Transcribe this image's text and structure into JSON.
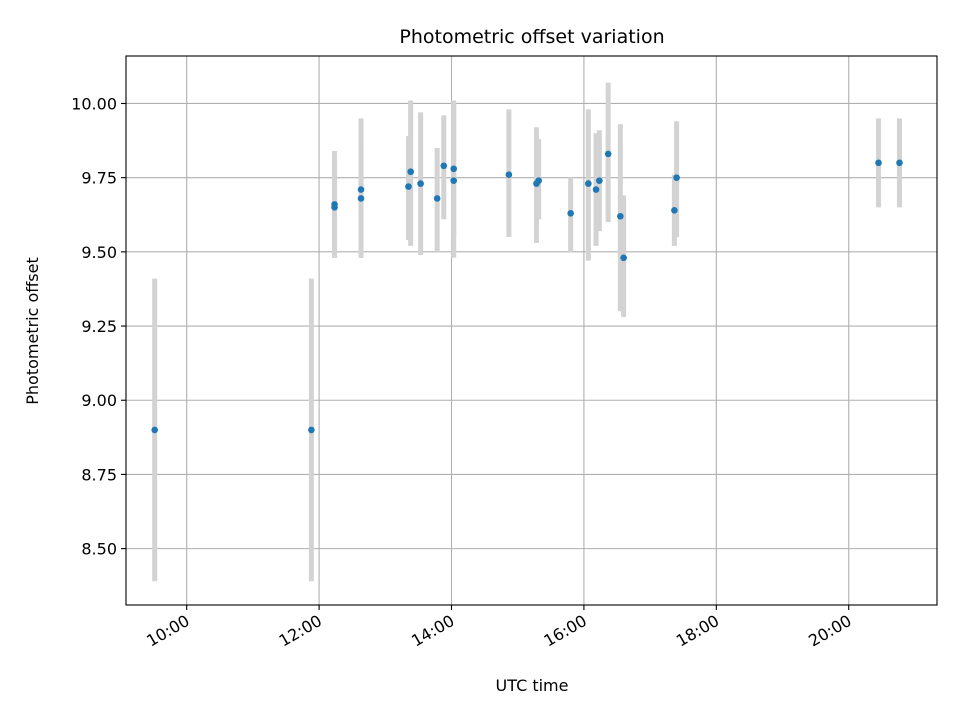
{
  "chart_data": {
    "type": "scatter",
    "title": "Photometric offset variation",
    "xlabel": "UTC time",
    "ylabel": "Photometric offset",
    "x_format": "HH:MM",
    "xlim": [
      "09:05",
      "21:20"
    ],
    "ylim": [
      8.31,
      10.16
    ],
    "x_ticks": [
      "10:00",
      "12:00",
      "14:00",
      "16:00",
      "18:00",
      "20:00"
    ],
    "y_ticks": [
      8.5,
      8.75,
      9.0,
      9.25,
      9.5,
      9.75,
      10.0
    ],
    "y_tick_labels": [
      "8.50",
      "8.75",
      "9.00",
      "9.25",
      "9.50",
      "9.75",
      "10.00"
    ],
    "grid": true,
    "legend": "none",
    "colors": {
      "point": "#1f77b4",
      "errorbar": "#d3d3d3"
    },
    "points": [
      {
        "x": "09:31",
        "y": 8.9,
        "ylow": 8.39,
        "yhigh": 9.41
      },
      {
        "x": "11:53",
        "y": 8.9,
        "ylow": 8.39,
        "yhigh": 9.41
      },
      {
        "x": "12:14",
        "y": 9.66,
        "ylow": 9.48,
        "yhigh": 9.84
      },
      {
        "x": "12:14",
        "y": 9.65,
        "ylow": 9.48,
        "yhigh": 9.82
      },
      {
        "x": "12:38",
        "y": 9.71,
        "ylow": 9.48,
        "yhigh": 9.95
      },
      {
        "x": "12:38",
        "y": 9.68,
        "ylow": 9.48,
        "yhigh": 9.88
      },
      {
        "x": "13:21",
        "y": 9.72,
        "ylow": 9.54,
        "yhigh": 9.89
      },
      {
        "x": "13:23",
        "y": 9.77,
        "ylow": 9.52,
        "yhigh": 10.01
      },
      {
        "x": "13:32",
        "y": 9.73,
        "ylow": 9.49,
        "yhigh": 9.97
      },
      {
        "x": "13:47",
        "y": 9.68,
        "ylow": 9.5,
        "yhigh": 9.85
      },
      {
        "x": "13:53",
        "y": 9.79,
        "ylow": 9.61,
        "yhigh": 9.96
      },
      {
        "x": "14:02",
        "y": 9.78,
        "ylow": 9.55,
        "yhigh": 10.01
      },
      {
        "x": "14:02",
        "y": 9.74,
        "ylow": 9.48,
        "yhigh": 10.0
      },
      {
        "x": "14:52",
        "y": 9.76,
        "ylow": 9.55,
        "yhigh": 9.98
      },
      {
        "x": "15:17",
        "y": 9.73,
        "ylow": 9.53,
        "yhigh": 9.92
      },
      {
        "x": "15:19",
        "y": 9.74,
        "ylow": 9.61,
        "yhigh": 9.88
      },
      {
        "x": "15:48",
        "y": 9.63,
        "ylow": 9.5,
        "yhigh": 9.75
      },
      {
        "x": "16:04",
        "y": 9.73,
        "ylow": 9.47,
        "yhigh": 9.98
      },
      {
        "x": "16:11",
        "y": 9.71,
        "ylow": 9.52,
        "yhigh": 9.9
      },
      {
        "x": "16:14",
        "y": 9.74,
        "ylow": 9.57,
        "yhigh": 9.91
      },
      {
        "x": "16:22",
        "y": 9.83,
        "ylow": 9.6,
        "yhigh": 10.07
      },
      {
        "x": "16:33",
        "y": 9.62,
        "ylow": 9.3,
        "yhigh": 9.93
      },
      {
        "x": "16:36",
        "y": 9.48,
        "ylow": 9.28,
        "yhigh": 9.69
      },
      {
        "x": "17:22",
        "y": 9.64,
        "ylow": 9.52,
        "yhigh": 9.76
      },
      {
        "x": "17:24",
        "y": 9.75,
        "ylow": 9.55,
        "yhigh": 9.94
      },
      {
        "x": "20:27",
        "y": 9.8,
        "ylow": 9.65,
        "yhigh": 9.95
      },
      {
        "x": "20:46",
        "y": 9.8,
        "ylow": 9.65,
        "yhigh": 9.95
      }
    ]
  }
}
